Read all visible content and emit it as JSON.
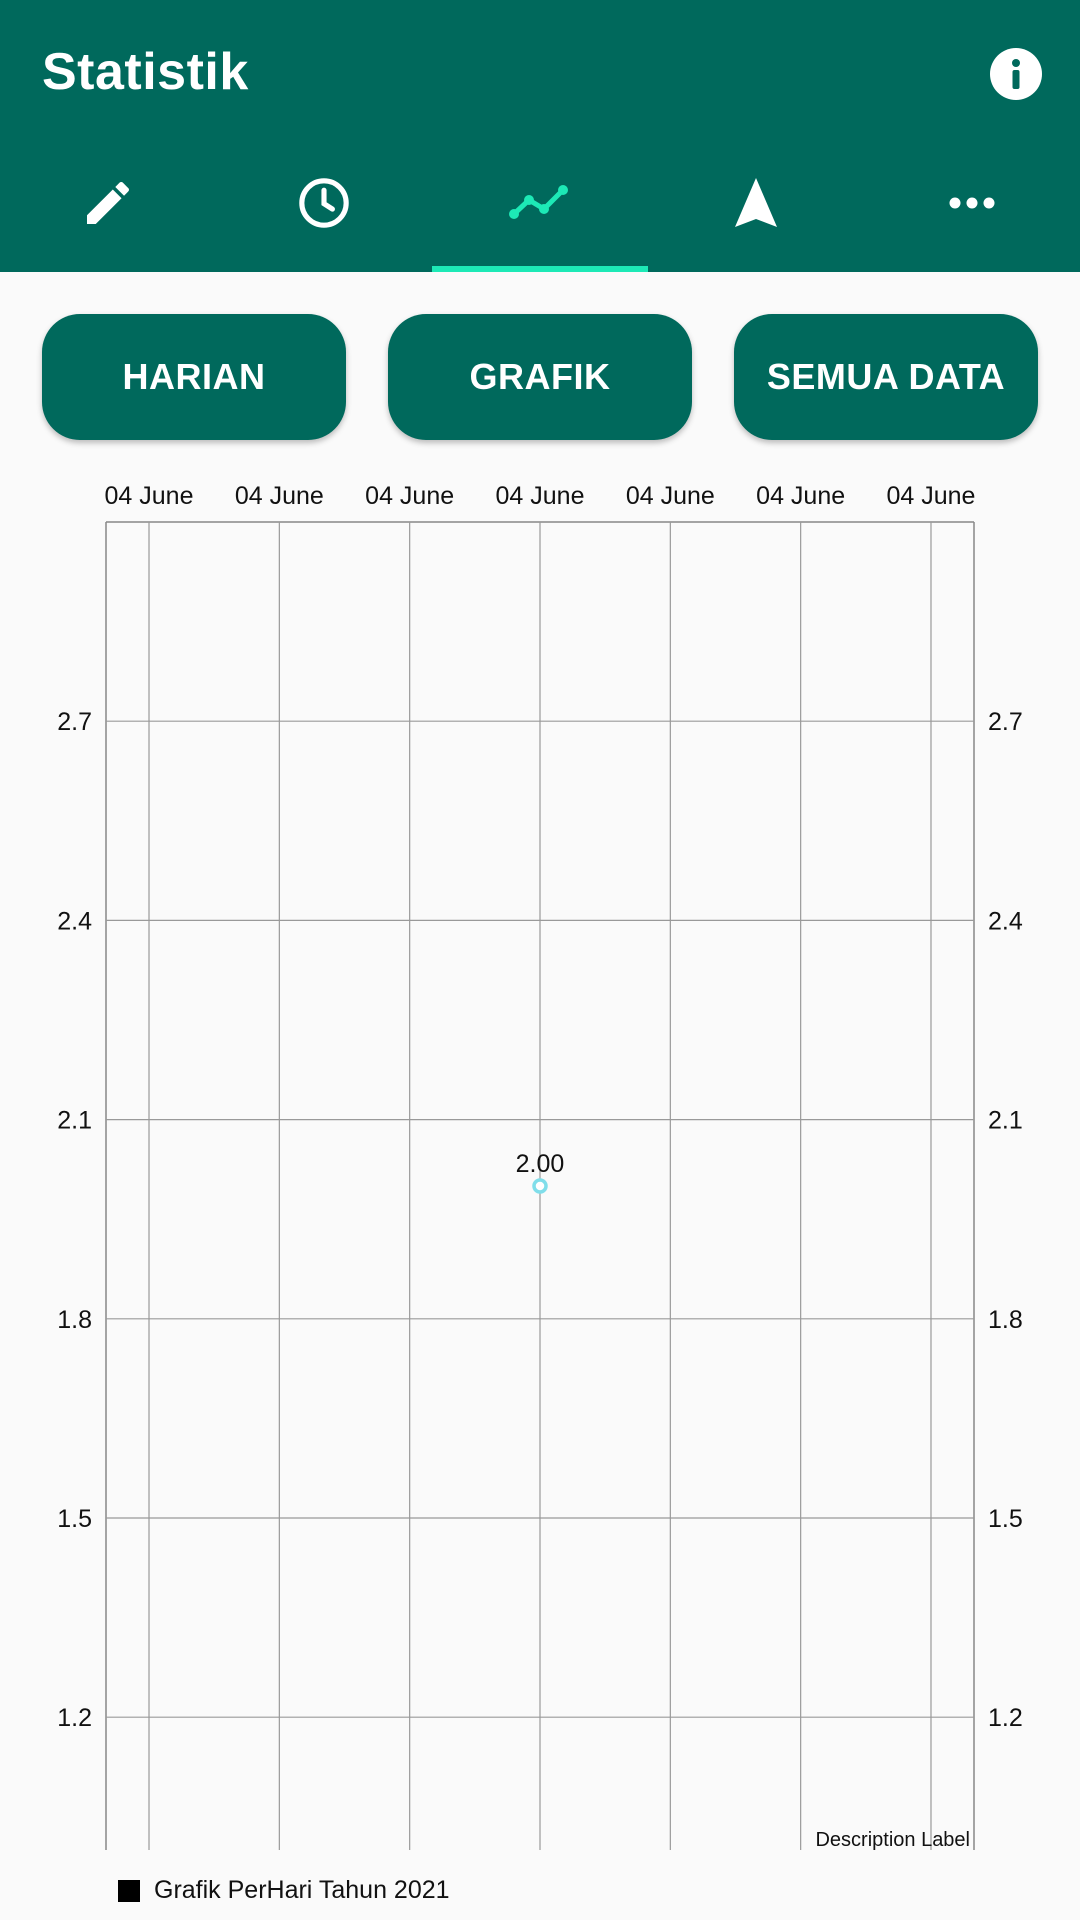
{
  "app": {
    "title": "Statistik"
  },
  "tabs": [
    {
      "icon": "pencil-icon",
      "active": false
    },
    {
      "icon": "clock-icon",
      "active": false
    },
    {
      "icon": "line-chart-icon",
      "active": true
    },
    {
      "icon": "navigation-arrow-icon",
      "active": false
    },
    {
      "icon": "more-horizontal-icon",
      "active": false
    }
  ],
  "buttons": {
    "harian": "HARIAN",
    "grafik": "GRAFIK",
    "semua": "SEMUA DATA"
  },
  "colors": {
    "primary": "#00695c",
    "accent": "#1de9b6",
    "point": "#80deea"
  },
  "chart_data": {
    "type": "scatter",
    "x_tick_labels": [
      "04 June",
      "04 June",
      "04 June",
      "04 June",
      "04 June",
      "04 June",
      "04 June"
    ],
    "y_ticks": [
      1.2,
      1.5,
      1.8,
      2.1,
      2.4,
      2.7
    ],
    "ylim": [
      1.0,
      3.0
    ],
    "series": [
      {
        "name": "Grafik PerHari Tahun 2021",
        "values": [
          2.0
        ],
        "value_labels": [
          "2.00"
        ]
      }
    ],
    "x_positions": [
      3
    ],
    "x_domain": [
      -0.33,
      6.33
    ],
    "description": "Description Label",
    "grid": true,
    "legend_placement": "bottom-left"
  }
}
